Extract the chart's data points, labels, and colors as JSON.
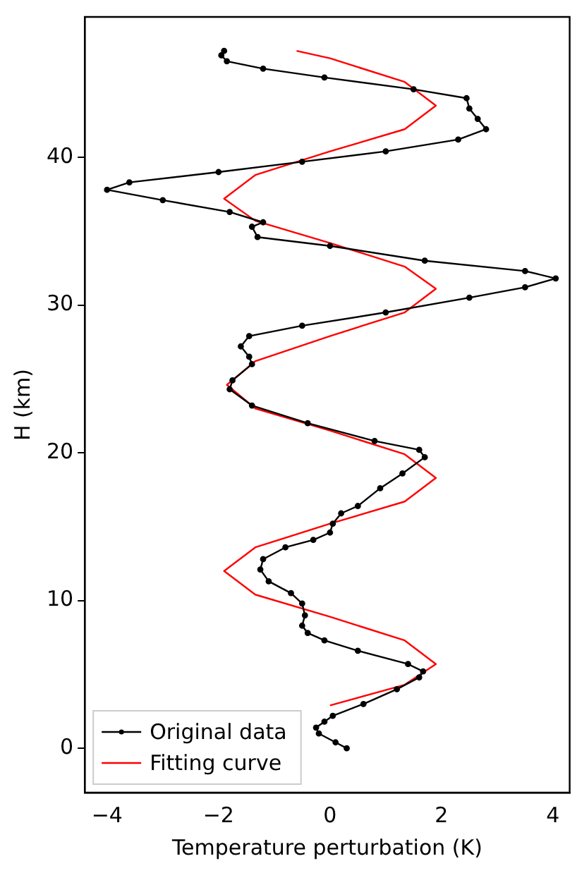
{
  "chart_data": {
    "type": "line",
    "xlabel": "Temperature perturbation (K)",
    "ylabel": "H (km)",
    "xlim": [
      -4.4,
      4.3
    ],
    "xticks": [
      -4,
      -2,
      0,
      2,
      4
    ],
    "ylim": [
      -3,
      49.5
    ],
    "yticks": [
      0,
      10,
      20,
      30,
      40
    ],
    "grid": false,
    "legend": "bottom left",
    "series": [
      {
        "name": "Original data",
        "color": "#000000",
        "marker": "circle",
        "x": [
          0.3,
          0.1,
          -0.2,
          -0.25,
          -0.1,
          0.05,
          0.6,
          1.2,
          1.6,
          1.67,
          1.4,
          0.5,
          -0.1,
          -0.4,
          -0.5,
          -0.45,
          -0.5,
          -0.7,
          -1.1,
          -1.25,
          -1.2,
          -0.8,
          -0.3,
          0,
          0.05,
          0.2,
          0.5,
          0.9,
          1.3,
          1.7,
          1.6,
          0.8,
          -0.4,
          -1.4,
          -1.8,
          -1.75,
          -1.4,
          -1.45,
          -1.6,
          -1.45,
          -0.5,
          1.0,
          2.5,
          3.5,
          4.05,
          3.5,
          1.7,
          0.0,
          -1.3,
          -1.4,
          -1.2,
          -1.8,
          -3.0,
          -4.0,
          -3.6,
          -2.0,
          -0.5,
          1.0,
          2.3,
          2.8,
          2.65,
          2.5,
          2.45,
          1.5,
          -0.1,
          -1.2,
          -1.85,
          -1.95,
          -1.9
        ],
        "values": [
          0,
          0.4,
          1.0,
          1.4,
          1.8,
          2.2,
          3.0,
          4.0,
          4.8,
          5.2,
          5.7,
          6.6,
          7.3,
          7.8,
          8.3,
          9.0,
          9.8,
          10.5,
          11.3,
          12.1,
          12.8,
          13.6,
          14.1,
          14.6,
          15.2,
          15.9,
          16.4,
          17.6,
          18.6,
          19.7,
          20.2,
          20.8,
          22.0,
          23.2,
          24.3,
          24.9,
          26.0,
          26.5,
          27.2,
          27.9,
          28.6,
          29.5,
          30.5,
          31.2,
          31.8,
          32.3,
          33.0,
          34.0,
          34.6,
          35.3,
          35.6,
          36.3,
          37.1,
          37.8,
          38.3,
          39.0,
          39.7,
          40.4,
          41.2,
          41.9,
          42.6,
          43.3,
          44.0,
          44.6,
          45.4,
          46.0,
          46.5,
          46.9,
          47.2
        ]
      },
      {
        "name": "Fitting curve",
        "color": "#ff0000",
        "marker": "none",
        "x": [
          0,
          1.34,
          1.9,
          1.34,
          0,
          -1.34,
          -1.9,
          -1.34,
          0,
          1.34,
          1.9,
          1.34,
          0,
          -1.34,
          -1.85,
          -1.34,
          0,
          1.34,
          1.9,
          1.34,
          0,
          -1.34,
          -1.9,
          -1.34,
          0,
          1.34,
          1.9,
          1.34,
          0,
          -0.6
        ],
        "values": [
          2.9,
          4.3,
          5.7,
          7.3,
          8.9,
          10.4,
          12.0,
          13.6,
          15.2,
          16.7,
          18.3,
          19.9,
          21.5,
          23.0,
          24.6,
          26.2,
          27.9,
          29.5,
          31.1,
          32.6,
          34.2,
          35.7,
          37.2,
          38.8,
          40.4,
          41.9,
          43.5,
          45.1,
          46.7,
          47.2
        ]
      }
    ]
  }
}
